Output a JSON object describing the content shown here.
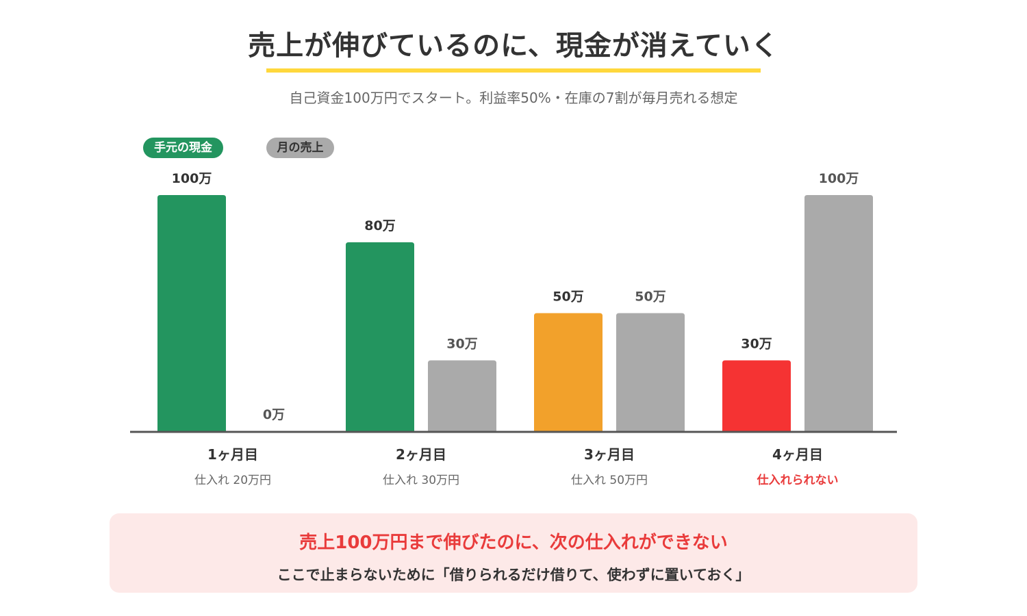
{
  "header": {
    "title": "売上が伸びているのに、現金が消えていく",
    "subtitle": "自己資金100万円でスタート。利益率50%・在庫の7割が毎月売れる想定"
  },
  "legend": {
    "cash_label": "手元の現金",
    "sales_label": "月の売上"
  },
  "colors": {
    "cash_ok": "#23955F",
    "cash_warning": "#F2A12B",
    "cash_danger": "#F53333",
    "sales": "#AAAAAA",
    "axis": "#555555",
    "underline": "#FFD83D",
    "danger_text": "#E93B3B"
  },
  "chart_data": {
    "type": "bar",
    "categories": [
      "1ヶ月目",
      "2ヶ月目",
      "3ヶ月目",
      "4ヶ月目"
    ],
    "unit_suffix": "万",
    "ylim": [
      0,
      100
    ],
    "series": [
      {
        "name": "手元の現金",
        "values": [
          100,
          80,
          50,
          30
        ],
        "labels": [
          "100万",
          "80万",
          "50万",
          "30万"
        ],
        "colors": [
          "#23955F",
          "#23955F",
          "#F2A12B",
          "#F53333"
        ],
        "label_colors": [
          "#333333",
          "#333333",
          "#333333",
          "#333333"
        ]
      },
      {
        "name": "月の売上",
        "values": [
          0,
          30,
          50,
          100
        ],
        "labels": [
          "0万",
          "30万",
          "50万",
          "100万"
        ],
        "colors": [
          "#AAAAAA",
          "#AAAAAA",
          "#AAAAAA",
          "#AAAAAA"
        ],
        "label_colors": [
          "#555555",
          "#555555",
          "#555555",
          "#555555"
        ]
      }
    ],
    "purchases": [
      {
        "text": "仕入れ  20万円",
        "alert": false
      },
      {
        "text": "仕入れ  30万円",
        "alert": false
      },
      {
        "text": "仕入れ  50万円",
        "alert": false
      },
      {
        "text": "仕入れられない",
        "alert": true
      }
    ],
    "grid": false,
    "legend_position": "top-left"
  },
  "callout": {
    "main": "売上100万円まで伸びたのに、次の仕入れができない",
    "sub": "ここで止まらないために「借りられるだけ借りて、使わずに置いておく」"
  }
}
